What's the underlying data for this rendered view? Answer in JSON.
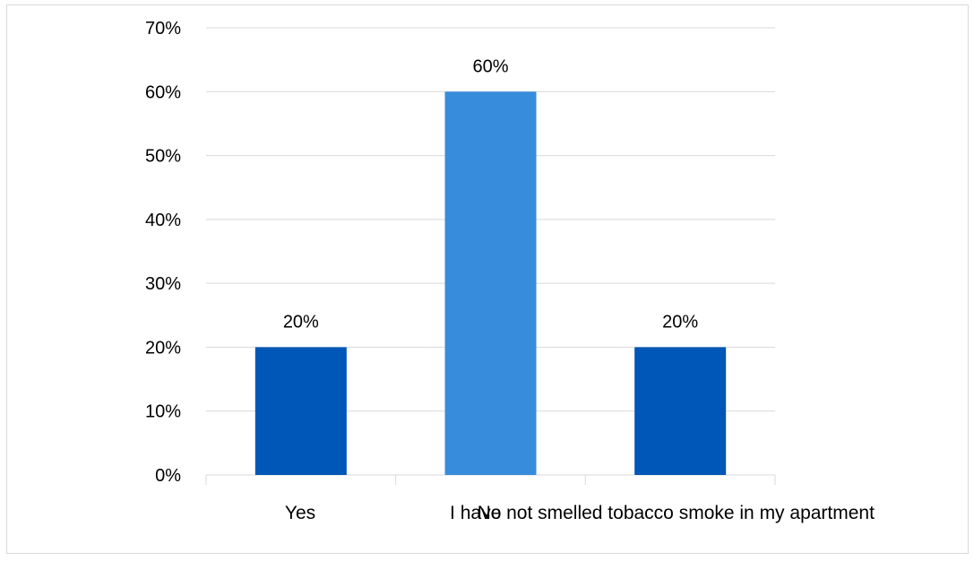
{
  "chart_data": {
    "type": "bar",
    "categories": [
      "Yes",
      "No",
      "I have not smelled tobacco smoke in my apartment"
    ],
    "values": [
      0.2,
      0.6,
      0.2
    ],
    "data_labels": [
      "20%",
      "60%",
      "20%"
    ],
    "bar_colors": [
      "#0057b8",
      "#378cdc",
      "#0057b8"
    ],
    "ylim": [
      0,
      0.7
    ],
    "yticks": [
      0,
      0.1,
      0.2,
      0.3,
      0.4,
      0.5,
      0.6,
      0.7
    ],
    "ytick_labels": [
      "0%",
      "10%",
      "20%",
      "30%",
      "40%",
      "50%",
      "60%",
      "70%"
    ],
    "grid": true,
    "gridline_color": "#d9d9d9",
    "legend": "none"
  }
}
